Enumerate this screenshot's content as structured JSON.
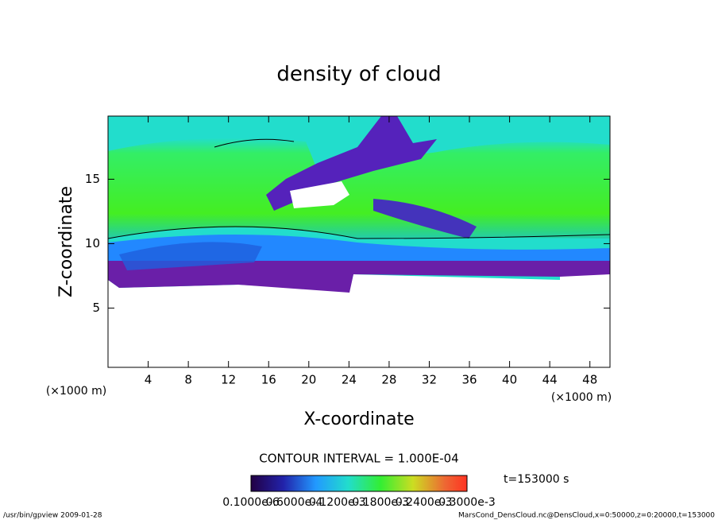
{
  "chart_data": {
    "type": "contour",
    "title": "density of cloud",
    "xlabel": "X-coordinate",
    "ylabel": "Z-coordinate",
    "x_unit": "(×1000 m)",
    "y_unit": "(×1000 m)",
    "xlim": [
      0,
      50
    ],
    "xticks": [
      4,
      8,
      12,
      16,
      20,
      24,
      28,
      32,
      36,
      40,
      44,
      48
    ],
    "ylim": [
      0.4,
      19.9
    ],
    "yticks": [
      5,
      10,
      15
    ],
    "contour_interval": "CONTOUR INTERVAL = 1.000E-04",
    "time_label": "t=153000 s",
    "colorbar_labels": [
      "0.1000e-6",
      "0.6000e-4",
      "0.1200e-3",
      "0.1800e-3",
      "0.2400e-3",
      "0.3000e-3"
    ],
    "footer_left": "/usr/bin/gpview   2009-01-28",
    "footer_right": "MarsCond_DensCloud.nc@DensCloud,x=0:50000,z=0:20000,t=153000"
  }
}
